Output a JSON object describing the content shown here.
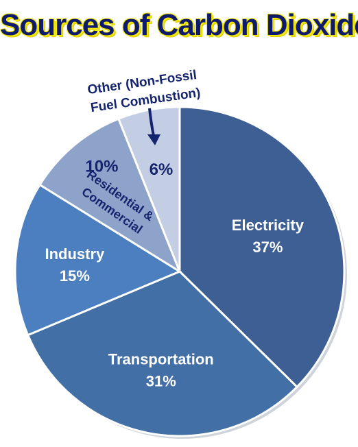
{
  "title": "Sources of Carbon Dioxide",
  "chart_data": {
    "type": "pie",
    "title": "Sources of Carbon Dioxide",
    "slices": [
      {
        "label": "Electricity",
        "value": 37,
        "value_label": "37%",
        "color": "#3d5f94"
      },
      {
        "label": "Transportation",
        "value": 31,
        "value_label": "31%",
        "color": "#426fa6"
      },
      {
        "label": "Industry",
        "value": 15,
        "value_label": "15%",
        "color": "#4b7fbf"
      },
      {
        "label_lines": [
          "Residential &",
          "Commercial"
        ],
        "value": 10,
        "value_label": "10%",
        "color": "#8ea3c9"
      },
      {
        "label_lines": [
          "Other (Non-Fossil",
          "Fuel Combustion)"
        ],
        "value": 6,
        "value_label": "6%",
        "color": "#c3cde3"
      }
    ],
    "label_text_color": "#ffffff",
    "small_label_color": "#14246e",
    "start_at_top": true,
    "direction": "clockwise"
  }
}
